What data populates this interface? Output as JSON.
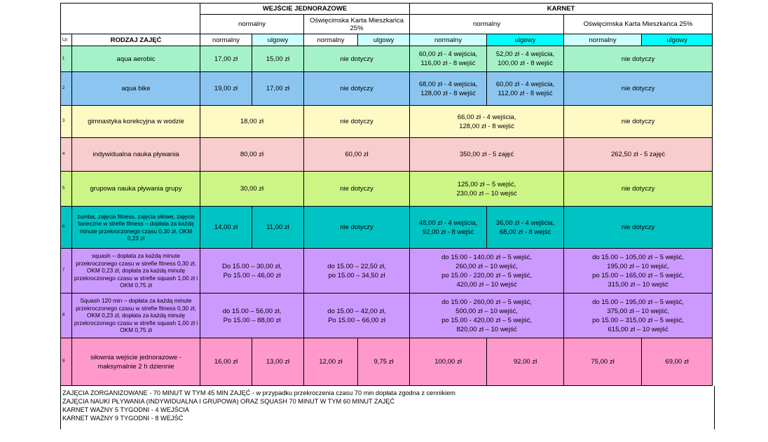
{
  "headers": {
    "group_single": "WEJŚCIE JEDNORAZOWE",
    "group_pass": "KARNET",
    "normal": "normalny",
    "okm": "Oświęcimska Karta Mieszkańca 25%",
    "normal_price": "normalny",
    "reduced_price": "ulgowy",
    "lp": "Lp.",
    "activity_type": "RODZAJ ZAJĘĆ"
  },
  "rows": [
    {
      "no": "1",
      "name": "aqua aerobic",
      "single_normal": "17,00 zł",
      "single_reduced": "15,00 zł",
      "single_okm": "nie dotyczy",
      "pass_normal": "60,00 zł - 4 wejścia,\n116,00 zł - 8 wejść",
      "pass_reduced": "52,00 zł - 4 wejścia,\n100,00 zł - 8 wejść",
      "pass_okm": "nie dotyczy"
    },
    {
      "no": "2",
      "name": "aqua bike",
      "single_normal": "19,00 zł",
      "single_reduced": "17,00 zł",
      "single_okm": "nie dotyczy",
      "pass_normal": "68,00 zł - 4 wejścia,\n128,00 zł - 8 wejść",
      "pass_reduced": "60,00 zł - 4 wejścia,\n112,00 zł - 8 wejść",
      "pass_okm": "nie dotyczy"
    },
    {
      "no": "3",
      "name": "gimnastyka korekcyjna w wodzie",
      "single": "18,00 zł",
      "single_okm": "nie dotyczy",
      "pass": "66,00 zł - 4 wejścia,\n128,00 zł - 8 wejść",
      "pass_okm": "nie dotyczy"
    },
    {
      "no": "4",
      "name": "indywidualna nauka pływania",
      "single": "80,00 zł",
      "single_okm": "60,00 zł",
      "pass": "350,00 zł - 5 zajęć",
      "pass_okm": "262,50 zł - 5 zajęć"
    },
    {
      "no": "5",
      "name": "grupowa nauka pływania grupy",
      "single": "30,00 zł",
      "single_okm": "nie dotyczy",
      "pass": "125,00 zł – 5 wejść,\n230,00 zł – 10 wejść",
      "pass_okm": "nie dotyczy"
    },
    {
      "no": "6",
      "name": "zumba, zajęcia fitness, zajęcia siłowe, zajęcia taneczne w strefie fitness – dopłata za każdą minute przekroczonego czasu 0,30 zł, OKM 0,23 zł",
      "single_normal": "14,00 zł",
      "single_reduced": "11,00 zł",
      "single_okm": "nie dotyczy",
      "pass_normal": "48,00 zł - 4 wejścia,\n92,00 zł - 8 wejść",
      "pass_reduced": "36,00 zł - 4 wejścia,\n68,00 zł - 8 wejść",
      "pass_okm": "nie dotyczy"
    },
    {
      "no": "7",
      "name": "squash – dopłata za każdą minute przekroczonego czasu w strefie fitness 0,30 zł, OKM 0,23 zł, dopłata za każdą minutę przekroczonego czasu w strefie squash 1,00 zł i OKM 0,75 zł",
      "single": "Do 15.00 – 30,00 zł,\nPo 15.00 – 46,00 zł",
      "single_okm": "do 15.00 – 22,50 zł,\npo 15.00 – 34,50 zł",
      "pass": "do 15:00 - 140,00 zł – 5 wejść,\n260,00 zł – 10 wejść,\npo 15.00 - 220,00 zł – 5 wejść,\n420,00 zł – 10 wejść",
      "pass_okm": "do 15.00 – 105,00 zł – 5 wejść,\n195,00 zł – 10 wejść,\npo 15.00 – 165,00 zł – 5 wejść,\n315,00 zł – 10 wejść"
    },
    {
      "no": "8",
      "name": "Squash 120 min – dopłata za każdą minute przekroczonego czasu w strefie fitness 0,30 zł, OKM 0,23 zł, dopłata za każdą minutę przekroczonego czasu w strefie squash 1,00 zł i OKM 0,75 zł",
      "single": "do 15.00 – 56,00 zł,\nPo 15.00 – 88,00 zł",
      "single_okm": "do 15.00 – 42,00 zł,\nPo 15.00 – 66,00 zł",
      "pass": "do 15:00 - 260,00 zł – 5 wejść,\n500,00 zł – 10 wejść,\npo 15.00 - 420,00 zł – 5 wejść,\n820,00 zł – 10 wejść",
      "pass_okm": "do 15.00 – 195,00 zł – 5 wejść,\n375,00 zł – 10 wejść,\npo 15.00 – 315,00 zł – 5 wejść,\n615,00 zł – 10 wejść"
    },
    {
      "no": "9",
      "name": "siłownia wejście jednorazowe - maksymalnie 2 h dziennie",
      "single_normal": "16,00 zł",
      "single_reduced": "13,00 zł",
      "single_okm_normal": "12,00 zł",
      "single_okm_reduced": "9,75 zł",
      "pass_normal": "100,00 zł",
      "pass_reduced": "92,00 zł",
      "pass_okm_normal": "75,00 zł",
      "pass_okm_reduced": "69,00 zł"
    }
  ],
  "notes": [
    "ZAJĘCIA ZORGANIZOWANE - 70 MINUT W TYM 45 MIN ZAJĘĆ - w przypadku przekroczenia czasu 70 min dopłata zgodna z cennikiem",
    "ZAJĘCIA NAUKI PŁYWANIA (INDYWIDUALNA I GRUPOWA) ORAZ SQUASH 70 MINUT W TYM 60 MINUT ZAJĘĆ",
    "KARNET WAŻNY 5 TYGODNI - 4 WEJŚCIA",
    "KARNET WAŻNY 9 TYGODNI - 8 WEJŚĆ"
  ]
}
